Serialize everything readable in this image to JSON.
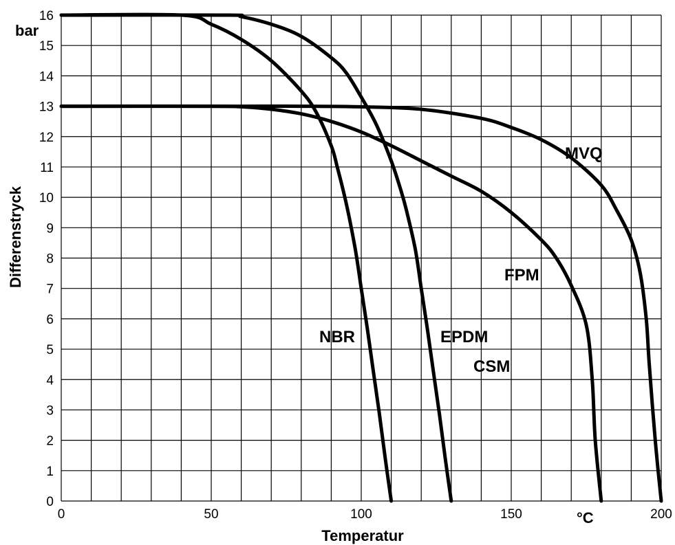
{
  "chart_data": {
    "type": "line",
    "xlabel": "Temperatur",
    "ylabel": "Differenstryck",
    "x_unit": "°C",
    "y_unit": "bar",
    "xlim": [
      0,
      200
    ],
    "ylim": [
      0,
      16
    ],
    "x_ticks": [
      0,
      50,
      100,
      150,
      200
    ],
    "y_ticks": [
      0,
      1,
      2,
      3,
      4,
      5,
      6,
      7,
      8,
      9,
      10,
      11,
      12,
      13,
      14,
      15,
      16
    ],
    "grid": true,
    "series": [
      {
        "name": "NBR",
        "x": [
          0,
          40,
          50,
          60,
          70,
          80,
          85,
          90,
          92,
          95,
          98,
          100,
          102,
          104,
          106,
          108,
          110
        ],
        "y": [
          16,
          16,
          15.7,
          15.2,
          14.5,
          13.5,
          12.8,
          11.7,
          11,
          9.8,
          8.3,
          7,
          5.7,
          4.3,
          2.9,
          1.4,
          0
        ]
      },
      {
        "name": "EPDM / CSM",
        "x": [
          0,
          55,
          60,
          70,
          80,
          90,
          95,
          100,
          105,
          110,
          113,
          115,
          118,
          120,
          122,
          124,
          126,
          128,
          130
        ],
        "y": [
          16,
          16,
          15.95,
          15.7,
          15.3,
          14.6,
          14.1,
          13.3,
          12.4,
          11.2,
          10.3,
          9.6,
          8.3,
          7,
          5.7,
          4.3,
          2.9,
          1.4,
          0
        ]
      },
      {
        "name": "FPM",
        "x": [
          0,
          50,
          60,
          70,
          80,
          90,
          100,
          110,
          120,
          130,
          140,
          150,
          160,
          165,
          170,
          175,
          177,
          178,
          180
        ],
        "y": [
          13,
          13,
          12.98,
          12.9,
          12.75,
          12.5,
          12.15,
          11.7,
          11.2,
          10.7,
          10.2,
          9.5,
          8.6,
          8,
          7.1,
          5.8,
          4,
          2,
          0
        ]
      },
      {
        "name": "MVQ",
        "x": [
          0,
          60,
          80,
          100,
          120,
          140,
          150,
          160,
          170,
          180,
          185,
          190,
          193,
          195,
          196,
          198,
          200
        ],
        "y": [
          13,
          13,
          13,
          12.98,
          12.9,
          12.6,
          12.3,
          11.9,
          11.3,
          10.4,
          9.6,
          8.6,
          7.5,
          6,
          4.5,
          2,
          0
        ]
      }
    ],
    "annotations": [
      "NBR",
      "EPDM",
      "CSM",
      "FPM",
      "MVQ"
    ]
  }
}
